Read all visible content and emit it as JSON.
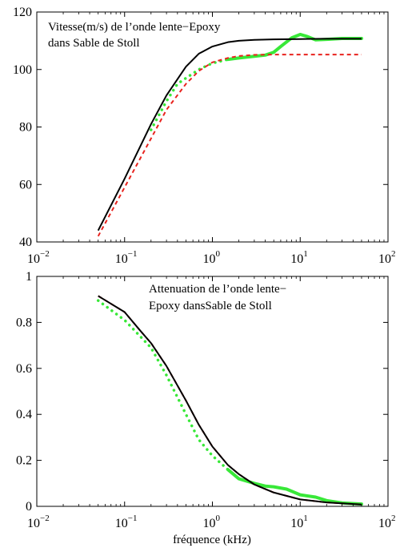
{
  "chart_data": [
    {
      "type": "line",
      "annotation": [
        "Vitesse(m/s) de l’onde lente−Epoxy",
        "dans Sable de Stoll"
      ],
      "xscale": "log",
      "xlim": [
        0.01,
        100
      ],
      "ylim": [
        40,
        120
      ],
      "xticks": [
        {
          "base": "10",
          "exp": "−2"
        },
        {
          "base": "10",
          "exp": "−1"
        },
        {
          "base": "10",
          "exp": "0"
        },
        {
          "base": "10",
          "exp": "1"
        },
        {
          "base": "10",
          "exp": "2"
        }
      ],
      "yticks": [
        "40",
        "60",
        "80",
        "100",
        "120"
      ],
      "series": [
        {
          "style": "solid",
          "color": "#000000",
          "x": [
            0.05,
            0.1,
            0.2,
            0.3,
            0.5,
            0.7,
            1,
            1.5,
            2,
            3,
            5,
            10,
            20,
            50
          ],
          "y": [
            44,
            62,
            81,
            91,
            101,
            105.5,
            108,
            109.5,
            110,
            110.3,
            110.5,
            110.6,
            110.7,
            110.7
          ]
        },
        {
          "style": "dashed",
          "color": "#e8231e",
          "x": [
            0.05,
            0.1,
            0.2,
            0.3,
            0.5,
            0.7,
            1,
            1.5,
            2,
            3,
            5,
            10,
            20,
            50
          ],
          "y": [
            42,
            59,
            76,
            86,
            95,
            99.5,
            102.5,
            104,
            104.7,
            105.1,
            105.2,
            105.2,
            105.2,
            105.2
          ]
        },
        {
          "style": "dotted-then-thick",
          "color": "#38e838",
          "x": [
            0.2,
            0.3,
            0.4,
            0.5,
            0.7,
            1,
            1.5,
            2,
            3,
            4,
            5,
            6,
            8,
            10,
            12,
            15,
            20,
            30,
            50
          ],
          "y": [
            79,
            89,
            95,
            97,
            100,
            102.2,
            103.5,
            104,
            104.6,
            105,
            106,
            108,
            111,
            112.2,
            111.5,
            110.3,
            110.5,
            110.8,
            110.8
          ]
        }
      ]
    },
    {
      "type": "line",
      "annotation": [
        "Attenuation de l’onde lente−",
        "Epoxy dansSable de Stoll"
      ],
      "xlabel": "fréquence (kHz)",
      "xscale": "log",
      "xlim": [
        0.01,
        100
      ],
      "ylim": [
        0,
        1
      ],
      "xticks": [
        {
          "base": "10",
          "exp": "−2"
        },
        {
          "base": "10",
          "exp": "−1"
        },
        {
          "base": "10",
          "exp": "0"
        },
        {
          "base": "10",
          "exp": "1"
        },
        {
          "base": "10",
          "exp": "2"
        }
      ],
      "yticks": [
        "0",
        "0.2",
        "0.4",
        "0.6",
        "0.8",
        "1"
      ],
      "series": [
        {
          "style": "solid",
          "color": "#000000",
          "x": [
            0.05,
            0.1,
            0.15,
            0.2,
            0.3,
            0.5,
            0.7,
            1,
            1.5,
            2,
            3,
            5,
            10,
            20,
            50
          ],
          "y": [
            0.915,
            0.845,
            0.765,
            0.71,
            0.61,
            0.46,
            0.355,
            0.26,
            0.18,
            0.14,
            0.095,
            0.06,
            0.03,
            0.017,
            0.008
          ]
        },
        {
          "style": "dashed",
          "color": "#e8231e",
          "x": [
            0.05,
            0.1,
            0.15,
            0.2,
            0.3,
            0.5,
            0.7,
            1,
            1.5,
            2,
            3,
            5,
            10,
            20,
            50
          ],
          "y": [
            0.915,
            0.845,
            0.765,
            0.71,
            0.61,
            0.46,
            0.355,
            0.26,
            0.18,
            0.14,
            0.095,
            0.06,
            0.03,
            0.017,
            0.008
          ]
        },
        {
          "style": "dotted-then-thick",
          "color": "#38e838",
          "x": [
            0.05,
            0.1,
            0.2,
            0.3,
            0.5,
            0.7,
            1,
            1.5,
            2,
            3,
            4,
            5,
            7,
            10,
            15,
            20,
            30,
            50
          ],
          "y": [
            0.895,
            0.81,
            0.69,
            0.57,
            0.4,
            0.29,
            0.22,
            0.16,
            0.12,
            0.1,
            0.088,
            0.085,
            0.075,
            0.05,
            0.04,
            0.025,
            0.015,
            0.01
          ]
        }
      ]
    }
  ]
}
